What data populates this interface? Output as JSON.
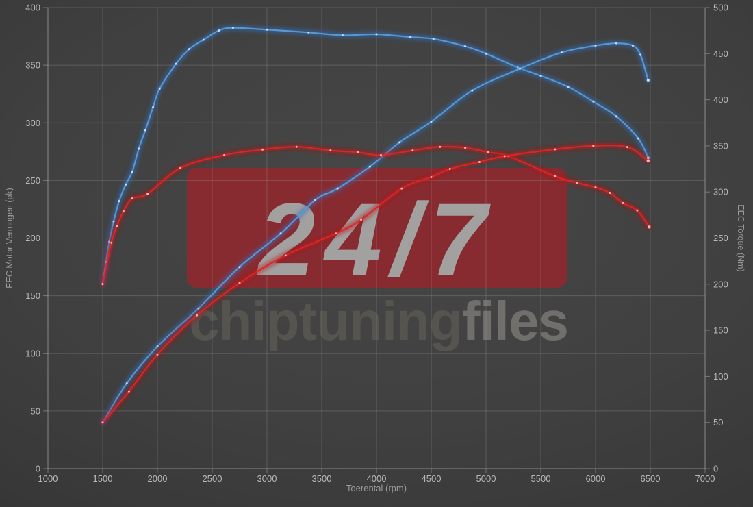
{
  "watermark": {
    "badge_text": "24/7",
    "brand_primary": "chiptuning",
    "brand_secondary": "files"
  },
  "colors": {
    "blue_core": "#5b9bd5",
    "blue_glow": "#2f6fc0",
    "blue_dot": "#d4e6fa",
    "red_core": "#e32424",
    "red_glow": "#b51313",
    "red_dot": "#ffc4c4",
    "grid": "#9a9a9a",
    "axis_line": "#b0b0b0",
    "tick_text": "#b8b8b8",
    "axis_title_text": "#9a9a9a",
    "watermark_box": "#8e2930",
    "watermark_badge_text": "#a3a0a0",
    "brand_primary_color": "#55544f",
    "brand_secondary_color": "#716f6b"
  },
  "chart_data": {
    "type": "line",
    "title": "",
    "xlabel": "Toerental (rpm)",
    "ylabel_left": "EEC Motor Vermogen (pk)",
    "ylabel_right": "EEC Torque (Nm)",
    "x_range": [
      1000,
      7000
    ],
    "y_left_range": [
      0,
      400
    ],
    "y_right_range": [
      0,
      500
    ],
    "x_ticks": [
      1000,
      1500,
      2000,
      2500,
      3000,
      3500,
      4000,
      4500,
      5000,
      5500,
      6000,
      6500,
      7000
    ],
    "y_left_ticks": [
      0,
      50,
      100,
      150,
      200,
      250,
      300,
      350,
      400
    ],
    "y_right_ticks": [
      0,
      50,
      100,
      150,
      200,
      250,
      300,
      350,
      400,
      450,
      500
    ],
    "grid": true,
    "legend": "none",
    "series": [
      {
        "name": "torque_blue_tuned",
        "axis": "right",
        "unit": "Nm",
        "color_key": "blue",
        "points": [
          [
            1500,
            201
          ],
          [
            1530,
            224
          ],
          [
            1560,
            246
          ],
          [
            1600,
            268
          ],
          [
            1650,
            290
          ],
          [
            1710,
            308
          ],
          [
            1770,
            322
          ],
          [
            1830,
            347
          ],
          [
            1890,
            367
          ],
          [
            1960,
            392
          ],
          [
            2020,
            412
          ],
          [
            2170,
            439
          ],
          [
            2290,
            455
          ],
          [
            2420,
            465
          ],
          [
            2560,
            475
          ],
          [
            2690,
            478
          ],
          [
            3000,
            476
          ],
          [
            3380,
            473
          ],
          [
            3690,
            470
          ],
          [
            4000,
            471
          ],
          [
            4310,
            468
          ],
          [
            4520,
            466
          ],
          [
            4810,
            458
          ],
          [
            5000,
            450
          ],
          [
            5290,
            435
          ],
          [
            5500,
            426
          ],
          [
            5750,
            414
          ],
          [
            5980,
            398
          ],
          [
            6190,
            382
          ],
          [
            6390,
            358
          ],
          [
            6480,
            337
          ]
        ]
      },
      {
        "name": "power_blue_tuned",
        "axis": "left",
        "unit": "pk",
        "color_key": "blue",
        "points": [
          [
            1500,
            40
          ],
          [
            1720,
            74
          ],
          [
            2000,
            106
          ],
          [
            2375,
            139
          ],
          [
            2750,
            175
          ],
          [
            3125,
            204
          ],
          [
            3440,
            233
          ],
          [
            3645,
            243
          ],
          [
            3940,
            262
          ],
          [
            4210,
            283
          ],
          [
            4500,
            301
          ],
          [
            4875,
            328
          ],
          [
            5310,
            347
          ],
          [
            5690,
            361
          ],
          [
            6000,
            367
          ],
          [
            6190,
            369
          ],
          [
            6340,
            367
          ],
          [
            6410,
            359
          ],
          [
            6480,
            337
          ]
        ]
      },
      {
        "name": "torque_red_original",
        "axis": "right",
        "unit": "Nm",
        "color_key": "red",
        "points": [
          [
            1500,
            200
          ],
          [
            1580,
            245
          ],
          [
            1630,
            263
          ],
          [
            1690,
            279
          ],
          [
            1770,
            293
          ],
          [
            1910,
            298
          ],
          [
            2210,
            326
          ],
          [
            2610,
            340
          ],
          [
            2960,
            346
          ],
          [
            3270,
            349
          ],
          [
            3580,
            345
          ],
          [
            3830,
            343
          ],
          [
            4040,
            340
          ],
          [
            4330,
            345
          ],
          [
            4580,
            349
          ],
          [
            4810,
            348
          ],
          [
            5020,
            343
          ],
          [
            5200,
            339
          ],
          [
            5630,
            317
          ],
          [
            5830,
            310
          ],
          [
            6000,
            305
          ],
          [
            6130,
            299
          ],
          [
            6250,
            288
          ],
          [
            6380,
            280
          ],
          [
            6490,
            262
          ]
        ]
      },
      {
        "name": "power_red_original",
        "axis": "left",
        "unit": "pk",
        "color_key": "red",
        "points": [
          [
            1500,
            40
          ],
          [
            1740,
            67
          ],
          [
            2000,
            99
          ],
          [
            2360,
            133
          ],
          [
            2750,
            161
          ],
          [
            3170,
            185
          ],
          [
            3630,
            204
          ],
          [
            3860,
            216
          ],
          [
            4230,
            243
          ],
          [
            4500,
            253
          ],
          [
            4670,
            260
          ],
          [
            4940,
            266
          ],
          [
            5170,
            271
          ],
          [
            5630,
            277
          ],
          [
            5980,
            280
          ],
          [
            6290,
            279
          ],
          [
            6480,
            267
          ]
        ]
      }
    ]
  }
}
